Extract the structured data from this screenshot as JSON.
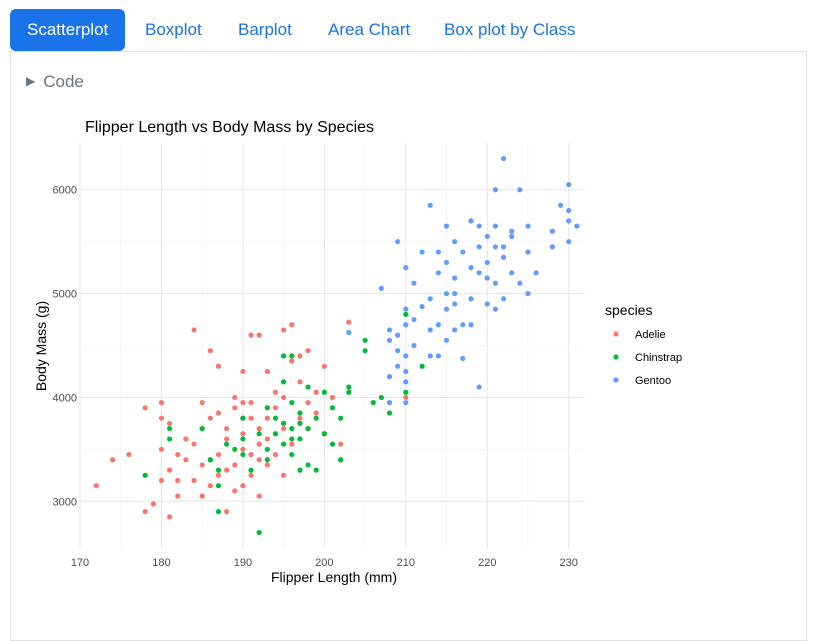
{
  "tabs": [
    {
      "label": "Scatterplot",
      "active": true
    },
    {
      "label": "Boxplot",
      "active": false
    },
    {
      "label": "Barplot",
      "active": false
    },
    {
      "label": "Area Chart",
      "active": false
    },
    {
      "label": "Box plot by Class",
      "active": false
    }
  ],
  "code_toggle": {
    "label": "Code",
    "icon": "triangle-right-icon"
  },
  "colors": {
    "accent": "#1a73e8",
    "Adelie": "#F8766D",
    "Chinstrap": "#00BA38",
    "Gentoo": "#619CFF"
  },
  "chart_data": {
    "type": "scatter",
    "title": "Flipper Length vs Body Mass by Species",
    "xlabel": "Flipper Length (mm)",
    "ylabel": "Body Mass (g)",
    "xlim": [
      170,
      232
    ],
    "ylim": [
      2550,
      6450
    ],
    "xticks": [
      170,
      180,
      190,
      200,
      210,
      220,
      230
    ],
    "yticks": [
      3000,
      4000,
      5000,
      6000
    ],
    "grid": true,
    "legend": {
      "title": "species",
      "position": "right"
    },
    "series": [
      {
        "name": "Adelie",
        "color": "#F8766D",
        "points": [
          [
            172,
            3150
          ],
          [
            174,
            3400
          ],
          [
            176,
            3450
          ],
          [
            178,
            2900
          ],
          [
            178,
            3900
          ],
          [
            179,
            2975
          ],
          [
            180,
            3800
          ],
          [
            180,
            3950
          ],
          [
            180,
            3500
          ],
          [
            180,
            3200
          ],
          [
            181,
            2850
          ],
          [
            181,
            3300
          ],
          [
            181,
            3750
          ],
          [
            182,
            3450
          ],
          [
            182,
            3200
          ],
          [
            182,
            3050
          ],
          [
            183,
            3400
          ],
          [
            183,
            3600
          ],
          [
            184,
            4650
          ],
          [
            184,
            3200
          ],
          [
            184,
            3550
          ],
          [
            185,
            3350
          ],
          [
            185,
            3700
          ],
          [
            185,
            3950
          ],
          [
            185,
            3050
          ],
          [
            186,
            4450
          ],
          [
            186,
            3800
          ],
          [
            186,
            3150
          ],
          [
            186,
            3400
          ],
          [
            187,
            3450
          ],
          [
            187,
            3850
          ],
          [
            187,
            3250
          ],
          [
            187,
            4300
          ],
          [
            188,
            2900
          ],
          [
            188,
            3600
          ],
          [
            188,
            3300
          ],
          [
            188,
            3700
          ],
          [
            189,
            3350
          ],
          [
            189,
            3900
          ],
          [
            189,
            4000
          ],
          [
            189,
            3100
          ],
          [
            190,
            3800
          ],
          [
            190,
            4250
          ],
          [
            190,
            3500
          ],
          [
            190,
            3650
          ],
          [
            190,
            3150
          ],
          [
            190,
            3950
          ],
          [
            191,
            4600
          ],
          [
            191,
            3450
          ],
          [
            191,
            3800
          ],
          [
            191,
            3250
          ],
          [
            191,
            3950
          ],
          [
            192,
            4600
          ],
          [
            192,
            3550
          ],
          [
            192,
            3400
          ],
          [
            192,
            3700
          ],
          [
            192,
            3050
          ],
          [
            193,
            4250
          ],
          [
            193,
            3800
          ],
          [
            193,
            3350
          ],
          [
            193,
            3600
          ],
          [
            194,
            4050
          ],
          [
            194,
            3450
          ],
          [
            194,
            3900
          ],
          [
            195,
            4650
          ],
          [
            195,
            3700
          ],
          [
            195,
            3250
          ],
          [
            195,
            4000
          ],
          [
            196,
            4700
          ],
          [
            196,
            4350
          ],
          [
            196,
            3550
          ],
          [
            197,
            4400
          ],
          [
            197,
            4150
          ],
          [
            197,
            3800
          ],
          [
            198,
            3700
          ],
          [
            198,
            4450
          ],
          [
            198,
            3950
          ],
          [
            199,
            4050
          ],
          [
            199,
            3850
          ],
          [
            200,
            4300
          ],
          [
            200,
            3650
          ],
          [
            201,
            4000
          ],
          [
            202,
            3550
          ],
          [
            203,
            4725
          ],
          [
            210,
            4000
          ]
        ]
      },
      {
        "name": "Chinstrap",
        "color": "#00BA38",
        "points": [
          [
            178,
            3250
          ],
          [
            181,
            3600
          ],
          [
            181,
            3700
          ],
          [
            185,
            3700
          ],
          [
            186,
            3400
          ],
          [
            187,
            3300
          ],
          [
            187,
            3150
          ],
          [
            187,
            2900
          ],
          [
            188,
            3550
          ],
          [
            189,
            3500
          ],
          [
            190,
            3600
          ],
          [
            190,
            3450
          ],
          [
            190,
            3800
          ],
          [
            191,
            3300
          ],
          [
            192,
            2700
          ],
          [
            192,
            3650
          ],
          [
            193,
            3500
          ],
          [
            193,
            3400
          ],
          [
            193,
            3900
          ],
          [
            194,
            3650
          ],
          [
            194,
            3800
          ],
          [
            195,
            3750
          ],
          [
            195,
            3550
          ],
          [
            195,
            4150
          ],
          [
            195,
            4400
          ],
          [
            196,
            3700
          ],
          [
            196,
            3600
          ],
          [
            196,
            3450
          ],
          [
            196,
            4400
          ],
          [
            196,
            3950
          ],
          [
            197,
            3300
          ],
          [
            197,
            3600
          ],
          [
            197,
            3750
          ],
          [
            197,
            3850
          ],
          [
            198,
            3700
          ],
          [
            198,
            4100
          ],
          [
            198,
            3350
          ],
          [
            199,
            3800
          ],
          [
            199,
            3300
          ],
          [
            200,
            3650
          ],
          [
            200,
            4050
          ],
          [
            201,
            3900
          ],
          [
            201,
            3550
          ],
          [
            202,
            3400
          ],
          [
            202,
            3800
          ],
          [
            203,
            4050
          ],
          [
            203,
            4100
          ],
          [
            205,
            4550
          ],
          [
            205,
            4450
          ],
          [
            206,
            3950
          ],
          [
            207,
            4000
          ],
          [
            208,
            3850
          ],
          [
            210,
            4800
          ],
          [
            210,
            4050
          ],
          [
            212,
            4300
          ]
        ]
      },
      {
        "name": "Gentoo",
        "color": "#619CFF",
        "points": [
          [
            203,
            4625
          ],
          [
            207,
            5050
          ],
          [
            208,
            4650
          ],
          [
            208,
            3950
          ],
          [
            208,
            4200
          ],
          [
            208,
            4550
          ],
          [
            209,
            4600
          ],
          [
            209,
            4300
          ],
          [
            209,
            5500
          ],
          [
            209,
            4450
          ],
          [
            210,
            4150
          ],
          [
            210,
            4700
          ],
          [
            210,
            4400
          ],
          [
            210,
            4250
          ],
          [
            210,
            4850
          ],
          [
            210,
            5250
          ],
          [
            210,
            3950
          ],
          [
            211,
            4750
          ],
          [
            211,
            4500
          ],
          [
            211,
            5100
          ],
          [
            212,
            4875
          ],
          [
            212,
            5400
          ],
          [
            213,
            4650
          ],
          [
            213,
            5850
          ],
          [
            213,
            4400
          ],
          [
            213,
            4950
          ],
          [
            214,
            5400
          ],
          [
            214,
            4700
          ],
          [
            214,
            5200
          ],
          [
            214,
            4400
          ],
          [
            215,
            4850
          ],
          [
            215,
            5300
          ],
          [
            215,
            4550
          ],
          [
            215,
            5000
          ],
          [
            215,
            5650
          ],
          [
            216,
            4650
          ],
          [
            216,
            5150
          ],
          [
            216,
            5000
          ],
          [
            216,
            4900
          ],
          [
            216,
            5500
          ],
          [
            217,
            4700
          ],
          [
            217,
            5400
          ],
          [
            217,
            4375
          ],
          [
            218,
            5700
          ],
          [
            218,
            4950
          ],
          [
            218,
            5250
          ],
          [
            218,
            4700
          ],
          [
            219,
            5200
          ],
          [
            219,
            5450
          ],
          [
            219,
            4100
          ],
          [
            219,
            5650
          ],
          [
            220,
            5150
          ],
          [
            220,
            5550
          ],
          [
            220,
            4900
          ],
          [
            220,
            5300
          ],
          [
            221,
            5100
          ],
          [
            221,
            6000
          ],
          [
            221,
            5450
          ],
          [
            221,
            4850
          ],
          [
            221,
            5650
          ],
          [
            222,
            6300
          ],
          [
            222,
            5350
          ],
          [
            222,
            4950
          ],
          [
            222,
            5450
          ],
          [
            223,
            5600
          ],
          [
            223,
            5550
          ],
          [
            223,
            5200
          ],
          [
            224,
            6000
          ],
          [
            224,
            5100
          ],
          [
            225,
            5650
          ],
          [
            225,
            5400
          ],
          [
            225,
            5000
          ],
          [
            226,
            5200
          ],
          [
            228,
            5450
          ],
          [
            228,
            5600
          ],
          [
            229,
            5850
          ],
          [
            230,
            5700
          ],
          [
            230,
            5800
          ],
          [
            230,
            6050
          ],
          [
            230,
            5500
          ],
          [
            231,
            5650
          ]
        ]
      }
    ]
  }
}
